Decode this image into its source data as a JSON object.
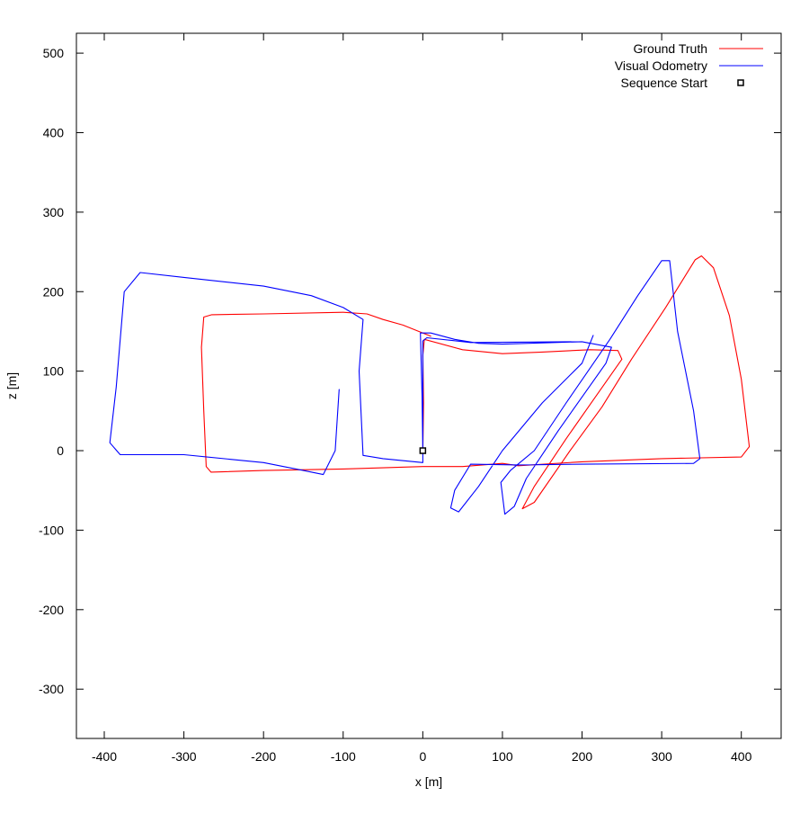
{
  "chart_data": {
    "type": "line",
    "title": "",
    "xlabel": "x [m]",
    "ylabel": "z [m]",
    "xlim": [
      -435,
      450
    ],
    "ylim": [
      -362,
      525
    ],
    "xticks": [
      -400,
      -300,
      -200,
      -100,
      0,
      100,
      200,
      300,
      400
    ],
    "yticks": [
      -300,
      -200,
      -100,
      0,
      100,
      200,
      300,
      400,
      500
    ],
    "xtick_labels": [
      "-400",
      "-300",
      "-200",
      "-100",
      "0",
      "100",
      "200",
      "300",
      "400"
    ],
    "ytick_labels": [
      "-300",
      "-200",
      "-100",
      "0",
      "100",
      "200",
      "300",
      "400",
      "500"
    ],
    "grid": false,
    "legend_position": "top-right",
    "legend": [
      {
        "label": "Ground Truth",
        "kind": "line",
        "color": "#ff0000"
      },
      {
        "label": "Visual Odometry",
        "kind": "line",
        "color": "#0000ff"
      },
      {
        "label": "Sequence Start",
        "kind": "marker",
        "color": "#000000"
      }
    ],
    "series": [
      {
        "name": "Ground Truth",
        "color": "#ff0000",
        "points": [
          [
            0,
            0
          ],
          [
            1,
            60
          ],
          [
            0,
            120
          ],
          [
            2,
            140
          ],
          [
            50,
            127
          ],
          [
            100,
            122
          ],
          [
            150,
            124
          ],
          [
            210,
            127
          ],
          [
            245,
            126
          ],
          [
            250,
            115
          ],
          [
            215,
            65
          ],
          [
            180,
            15
          ],
          [
            140,
            -45
          ],
          [
            125,
            -73
          ],
          [
            140,
            -65
          ],
          [
            185,
            0
          ],
          [
            225,
            55
          ],
          [
            262,
            115
          ],
          [
            305,
            180
          ],
          [
            342,
            240
          ],
          [
            350,
            245
          ],
          [
            365,
            230
          ],
          [
            385,
            170
          ],
          [
            400,
            90
          ],
          [
            410,
            5
          ],
          [
            400,
            -8
          ],
          [
            300,
            -10
          ],
          [
            200,
            -14
          ],
          [
            120,
            -19
          ],
          [
            100,
            -16
          ],
          [
            50,
            -20
          ],
          [
            0,
            -20
          ],
          [
            -100,
            -23
          ],
          [
            -200,
            -25
          ],
          [
            -266,
            -27
          ],
          [
            -272,
            -20
          ],
          [
            -275,
            50
          ],
          [
            -278,
            130
          ],
          [
            -275,
            168
          ],
          [
            -265,
            171
          ],
          [
            -200,
            172
          ],
          [
            -100,
            174
          ],
          [
            -70,
            172
          ],
          [
            -50,
            165
          ],
          [
            -25,
            158
          ],
          [
            0,
            148
          ],
          [
            10,
            144
          ]
        ]
      },
      {
        "name": "Visual Odometry",
        "color": "#0000ff",
        "points": [
          [
            0,
            0
          ],
          [
            -1,
            70
          ],
          [
            -3,
            148
          ],
          [
            10,
            148
          ],
          [
            40,
            140
          ],
          [
            70,
            135
          ],
          [
            100,
            134
          ],
          [
            200,
            137
          ],
          [
            237,
            130
          ],
          [
            230,
            110
          ],
          [
            170,
            25
          ],
          [
            130,
            -35
          ],
          [
            115,
            -70
          ],
          [
            103,
            -80
          ],
          [
            98,
            -40
          ],
          [
            110,
            -25
          ],
          [
            140,
            0
          ],
          [
            180,
            60
          ],
          [
            235,
            140
          ],
          [
            270,
            195
          ],
          [
            300,
            239
          ],
          [
            310,
            239
          ],
          [
            320,
            150
          ],
          [
            340,
            50
          ],
          [
            348,
            -10
          ],
          [
            340,
            -16
          ],
          [
            200,
            -17
          ],
          [
            120,
            -18
          ],
          [
            60,
            -17
          ],
          [
            40,
            -50
          ],
          [
            35,
            -72
          ],
          [
            45,
            -77
          ],
          [
            70,
            -45
          ],
          [
            100,
            0
          ],
          [
            150,
            60
          ],
          [
            200,
            110
          ],
          [
            214,
            145
          ],
          [
            210,
            135
          ],
          [
            200,
            137
          ],
          [
            60,
            136
          ],
          [
            5,
            142
          ],
          [
            0,
            138
          ],
          [
            0,
            -15
          ],
          [
            -50,
            -10
          ],
          [
            -75,
            -6
          ],
          [
            -80,
            100
          ],
          [
            -75,
            165
          ],
          [
            -100,
            180
          ],
          [
            -140,
            195
          ],
          [
            -200,
            207
          ],
          [
            -300,
            218
          ],
          [
            -355,
            224
          ],
          [
            -375,
            200
          ],
          [
            -385,
            80
          ],
          [
            -393,
            10
          ],
          [
            -380,
            -5
          ],
          [
            -300,
            -5
          ],
          [
            -200,
            -15
          ],
          [
            -150,
            -25
          ],
          [
            -125,
            -30
          ],
          [
            -110,
            0
          ],
          [
            -105,
            77
          ]
        ]
      }
    ],
    "markers": [
      {
        "name": "Sequence Start",
        "x": 0,
        "z": 0
      }
    ]
  }
}
